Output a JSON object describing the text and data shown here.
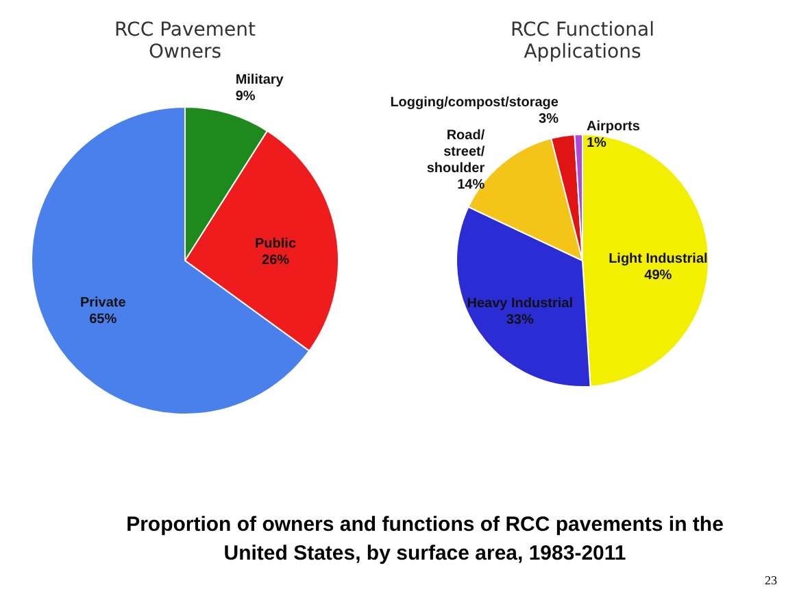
{
  "chart_data": [
    {
      "type": "pie",
      "title": "RCC Pavement Owners",
      "categories": [
        "Military",
        "Public",
        "Private"
      ],
      "values": [
        9,
        26,
        65
      ],
      "colors": [
        "#1e8a1e",
        "#ee1c1c",
        "#4a80ec"
      ],
      "value_labels": [
        "9%",
        "26%",
        "65%"
      ]
    },
    {
      "type": "pie",
      "title": "RCC Functional Applications",
      "categories": [
        "Light Industrial",
        "Heavy Industrial",
        "Road/street/shoulder",
        "Logging/compost/storage",
        "Airports"
      ],
      "values": [
        49,
        33,
        14,
        3,
        1
      ],
      "colors": [
        "#f2f000",
        "#2c2cd4",
        "#f5c418",
        "#e01414",
        "#b048d8"
      ],
      "value_labels": [
        "49%",
        "33%",
        "14%",
        "3%",
        "1%"
      ],
      "annotations": [
        "Proportion of owners and functions of RCC pavements in the United States, by surface area, 1983-2011",
        "23"
      ]
    }
  ]
}
